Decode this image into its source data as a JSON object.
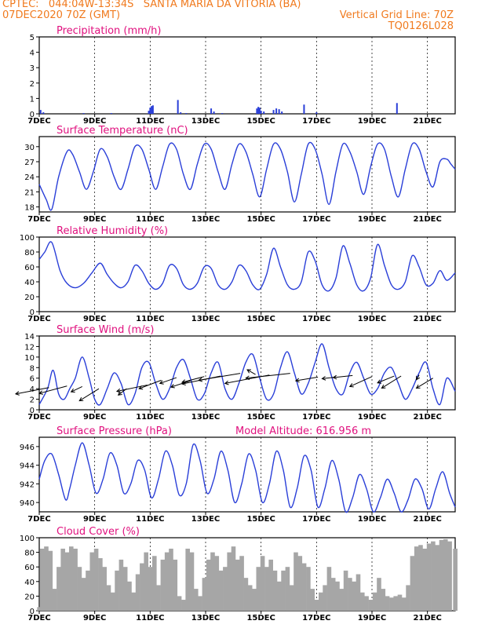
{
  "header": {
    "station": "CPTEC:   044:04W-13:34S   SANTA MARIA DA VITORIA (BA)",
    "date": "07DEC2020 70Z (GMT)",
    "grid_line": "Vertical Grid Line: 70Z",
    "code": "TQ0126L028"
  },
  "colors": {
    "series": "#2a3fd8",
    "cloud": "#a6a6a6",
    "title": "#e0107e",
    "header": "#f07a1e"
  },
  "chart_data": [
    {
      "id": "precip",
      "type": "bar",
      "title": "Precipitation (mm/h)",
      "ylim": [
        0,
        5
      ],
      "yticks": [
        0,
        1,
        2,
        3,
        4,
        5
      ],
      "xlim": [
        0,
        15
      ],
      "xticks": [
        0,
        2,
        4,
        6,
        8,
        10,
        12,
        14
      ],
      "xticklabels": [
        "7DEC",
        "9DEC",
        "11DEC",
        "13DEC",
        "15DEC",
        "17DEC",
        "19DEC",
        "21DEC"
      ],
      "x": [
        0.05,
        0.15,
        1.6,
        2.6,
        3.95,
        4.0,
        4.05,
        4.1,
        5.0,
        5.1,
        5.3,
        6.2,
        6.3,
        6.6,
        7.85,
        7.9,
        7.95,
        8.0,
        8.1,
        8.45,
        8.55,
        8.65,
        8.75,
        9.55,
        10.0,
        12.9
      ],
      "values": [
        0.25,
        0.1,
        0.05,
        0.05,
        0.2,
        0.4,
        0.5,
        0.55,
        0.9,
        0.1,
        0.05,
        0.35,
        0.15,
        0.05,
        0.35,
        0.45,
        0.4,
        0.2,
        0.15,
        0.25,
        0.35,
        0.3,
        0.15,
        0.6,
        0.1,
        0.7
      ]
    },
    {
      "id": "temp",
      "type": "line",
      "title": "Surface Temperature (nC)",
      "ylim": [
        17,
        32
      ],
      "yticks": [
        18,
        21,
        24,
        27,
        30
      ],
      "xlim": [
        0,
        15
      ],
      "xticks": [
        0,
        2,
        4,
        6,
        8,
        10,
        12,
        14
      ],
      "xticklabels": [
        "7DEC",
        "9DEC",
        "11DEC",
        "13DEC",
        "15DEC",
        "17DEC",
        "19DEC",
        "21DEC"
      ],
      "series": [
        {
          "x": [
            0,
            0.25,
            0.45,
            0.7,
            1.0,
            1.2,
            1.45,
            1.7,
            1.95,
            2.2,
            2.45,
            2.7,
            2.95,
            3.2,
            3.45,
            3.7,
            3.95,
            4.2,
            4.45,
            4.7,
            4.95,
            5.2,
            5.45,
            5.7,
            5.95,
            6.2,
            6.45,
            6.7,
            6.95,
            7.2,
            7.45,
            7.7,
            7.95,
            8.2,
            8.45,
            8.7,
            8.95,
            9.2,
            9.45,
            9.7,
            9.95,
            10.2,
            10.45,
            10.7,
            10.95,
            11.2,
            11.45,
            11.7,
            11.95,
            12.2,
            12.45,
            12.7,
            12.95,
            13.2,
            13.45,
            13.7,
            13.95,
            14.2,
            14.45,
            14.7,
            14.85,
            15.0
          ],
          "values": [
            22.5,
            19.5,
            17.5,
            24,
            29,
            28.5,
            25,
            21.5,
            25,
            29.5,
            28,
            24,
            21.5,
            25.5,
            30,
            29.5,
            25.5,
            21.5,
            26,
            30.5,
            29.5,
            24.5,
            21.5,
            26.5,
            30.5,
            29.5,
            25,
            21.5,
            26.5,
            30.5,
            29,
            24.5,
            20,
            25.5,
            30.5,
            29.5,
            25,
            19,
            24.5,
            30.5,
            29.5,
            24.5,
            18.5,
            25,
            30.5,
            29,
            25,
            20.5,
            26,
            30.5,
            29.5,
            24,
            20,
            25.5,
            30.5,
            29.5,
            25,
            22,
            27,
            27.5,
            26.5,
            25.5
          ]
        }
      ]
    },
    {
      "id": "rh",
      "type": "line",
      "title": "Relative Humidity (%)",
      "ylim": [
        0,
        100
      ],
      "yticks": [
        0,
        20,
        40,
        60,
        80,
        100
      ],
      "xlim": [
        0,
        15
      ],
      "xticks": [
        0,
        2,
        4,
        6,
        8,
        10,
        12,
        14
      ],
      "xticklabels": [
        "7DEC",
        "9DEC",
        "11DEC",
        "13DEC",
        "15DEC",
        "17DEC",
        "19DEC",
        "21DEC"
      ],
      "series": [
        {
          "x": [
            0,
            0.2,
            0.45,
            0.75,
            1.0,
            1.3,
            1.6,
            1.9,
            2.2,
            2.45,
            2.7,
            2.95,
            3.2,
            3.45,
            3.7,
            3.95,
            4.2,
            4.45,
            4.7,
            4.95,
            5.2,
            5.45,
            5.7,
            5.95,
            6.2,
            6.45,
            6.7,
            6.95,
            7.2,
            7.45,
            7.7,
            7.95,
            8.2,
            8.45,
            8.7,
            8.95,
            9.2,
            9.45,
            9.7,
            9.95,
            10.2,
            10.45,
            10.7,
            10.95,
            11.2,
            11.45,
            11.7,
            11.95,
            12.2,
            12.45,
            12.7,
            12.95,
            13.2,
            13.45,
            13.7,
            13.95,
            14.2,
            14.45,
            14.7,
            15.0
          ],
          "values": [
            70,
            80,
            93,
            55,
            38,
            32,
            38,
            52,
            65,
            50,
            38,
            32,
            40,
            62,
            55,
            38,
            30,
            38,
            62,
            58,
            36,
            30,
            38,
            60,
            58,
            36,
            30,
            40,
            62,
            55,
            36,
            30,
            50,
            85,
            60,
            36,
            30,
            40,
            80,
            68,
            36,
            28,
            45,
            88,
            65,
            36,
            28,
            45,
            90,
            62,
            36,
            30,
            40,
            75,
            60,
            36,
            38,
            55,
            42,
            52
          ]
        }
      ]
    },
    {
      "id": "wind",
      "type": "line",
      "title": "Surface Wind (m/s)",
      "ylim": [
        0,
        14
      ],
      "yticks": [
        0,
        2,
        4,
        6,
        8,
        10,
        12,
        14
      ],
      "xlim": [
        0,
        15
      ],
      "xticks": [
        0,
        2,
        4,
        6,
        8,
        10,
        12,
        14
      ],
      "xticklabels": [
        "7DEC",
        "9DEC",
        "11DEC",
        "13DEC",
        "15DEC",
        "17DEC",
        "19DEC",
        "21DEC"
      ],
      "series": [
        {
          "x": [
            0,
            0.3,
            0.5,
            0.7,
            0.9,
            1.1,
            1.3,
            1.55,
            1.8,
            2.0,
            2.2,
            2.45,
            2.7,
            2.95,
            3.2,
            3.45,
            3.7,
            3.95,
            4.2,
            4.45,
            4.7,
            4.95,
            5.2,
            5.45,
            5.7,
            5.95,
            6.2,
            6.45,
            6.7,
            6.95,
            7.2,
            7.45,
            7.7,
            7.95,
            8.2,
            8.45,
            8.7,
            8.95,
            9.2,
            9.45,
            9.7,
            9.95,
            10.2,
            10.45,
            10.7,
            10.95,
            11.2,
            11.45,
            11.7,
            11.95,
            12.2,
            12.45,
            12.7,
            12.95,
            13.2,
            13.45,
            13.7,
            13.95,
            14.2,
            14.45,
            14.7,
            15.0
          ],
          "values": [
            1,
            4,
            7.5,
            3,
            2,
            4,
            6,
            10,
            6,
            2,
            1,
            4,
            7,
            5,
            1,
            3,
            8,
            9,
            5,
            2,
            4,
            8,
            9.5,
            6,
            2,
            3,
            7,
            9,
            4,
            2,
            5,
            9,
            10.5,
            6,
            2,
            3,
            8,
            11,
            7,
            3,
            5,
            9,
            12.5,
            8,
            4,
            3,
            7,
            9,
            6,
            3,
            4,
            7,
            8,
            5,
            2,
            4,
            7,
            9,
            4,
            1,
            6,
            3.5
          ]
        }
      ],
      "vectors": [
        {
          "x": 0.35,
          "y": 4.2,
          "u": -1.2,
          "v": -1.2
        },
        {
          "x": 1.0,
          "y": 4.5,
          "u": -1.0,
          "v": -1.4
        },
        {
          "x": 1.55,
          "y": 4.4,
          "u": -0.4,
          "v": -1.0
        },
        {
          "x": 2.15,
          "y": 4.0,
          "u": -0.7,
          "v": -2.3
        },
        {
          "x": 3.15,
          "y": 4.0,
          "u": -0.3,
          "v": -1.2
        },
        {
          "x": 3.9,
          "y": 4.7,
          "u": -1.1,
          "v": -1.2
        },
        {
          "x": 4.4,
          "y": 5.6,
          "u": -0.8,
          "v": -1.6
        },
        {
          "x": 4.95,
          "y": 6.1,
          "u": -0.6,
          "v": -1.1
        },
        {
          "x": 5.45,
          "y": 5.5,
          "u": -0.7,
          "v": -1.2
        },
        {
          "x": 5.95,
          "y": 6.3,
          "u": -0.8,
          "v": -1.1
        },
        {
          "x": 6.55,
          "y": 6.4,
          "u": -1.4,
          "v": -1.5
        },
        {
          "x": 7.25,
          "y": 6.9,
          "u": -1.5,
          "v": -1.3
        },
        {
          "x": 7.8,
          "y": 6.7,
          "u": -0.3,
          "v": 0.9
        },
        {
          "x": 8.3,
          "y": 6.6,
          "u": -1.6,
          "v": -1.6
        },
        {
          "x": 9.05,
          "y": 6.9,
          "u": -1.6,
          "v": -0.9
        },
        {
          "x": 10.05,
          "y": 6.2,
          "u": -0.8,
          "v": -0.7
        },
        {
          "x": 10.7,
          "y": 6.2,
          "u": -0.5,
          "v": -0.3
        },
        {
          "x": 11.3,
          "y": 6.5,
          "u": -0.7,
          "v": -0.4
        },
        {
          "x": 12.0,
          "y": 6.3,
          "u": -0.8,
          "v": -1.9
        },
        {
          "x": 12.8,
          "y": 6.4,
          "u": -0.6,
          "v": -1.3
        },
        {
          "x": 13.05,
          "y": 6.4,
          "u": -0.7,
          "v": -2.3
        },
        {
          "x": 13.7,
          "y": 6.6,
          "u": -0.1,
          "v": -0.9
        },
        {
          "x": 14.2,
          "y": 6.0,
          "u": -0.6,
          "v": -1.9
        }
      ]
    },
    {
      "id": "pres",
      "type": "line",
      "title": "Surface Pressure (hPa)",
      "subtitle": "Model Altitude: 616.956 m",
      "ylim": [
        939,
        947
      ],
      "yticks": [
        940,
        942,
        944,
        946
      ],
      "xlim": [
        0,
        15
      ],
      "xticks": [
        0,
        2,
        4,
        6,
        8,
        10,
        12,
        14
      ],
      "xticklabels": [
        "7DEC",
        "9DEC",
        "11DEC",
        "13DEC",
        "15DEC",
        "17DEC",
        "19DEC",
        "21DEC"
      ],
      "series": [
        {
          "x": [
            0,
            0.2,
            0.45,
            0.7,
            0.95,
            1.1,
            1.3,
            1.55,
            1.8,
            2.05,
            2.3,
            2.55,
            2.8,
            3.05,
            3.3,
            3.55,
            3.8,
            4.05,
            4.3,
            4.55,
            4.8,
            5.05,
            5.3,
            5.55,
            5.8,
            6.05,
            6.3,
            6.55,
            6.8,
            7.05,
            7.3,
            7.55,
            7.8,
            8.05,
            8.3,
            8.55,
            8.8,
            9.05,
            9.3,
            9.55,
            9.8,
            10.05,
            10.3,
            10.55,
            10.8,
            11.05,
            11.3,
            11.55,
            11.8,
            12.05,
            12.3,
            12.55,
            12.8,
            13.05,
            13.3,
            13.55,
            13.8,
            14.05,
            14.3,
            14.55,
            14.8,
            15.0
          ],
          "values": [
            942.5,
            944.5,
            945.2,
            943,
            940.3,
            941.5,
            944,
            946.4,
            944,
            941,
            942.5,
            945.3,
            944,
            941,
            942,
            944.5,
            943.5,
            940.5,
            942.5,
            945.5,
            944,
            940.8,
            942,
            946.2,
            944.5,
            941,
            942.5,
            945.5,
            943.5,
            940,
            942,
            945.2,
            943.5,
            940,
            942,
            945.5,
            943.5,
            939.5,
            941.5,
            945,
            943.5,
            939.5,
            941.5,
            944.5,
            942.5,
            939,
            940.5,
            943,
            941.5,
            939,
            940.5,
            942.5,
            941,
            939,
            940.3,
            942.5,
            941.5,
            939.3,
            941.5,
            943.3,
            941,
            939.5
          ]
        }
      ]
    },
    {
      "id": "cloud",
      "type": "area",
      "title": "Cloud Cover (%)",
      "ylim": [
        0,
        100
      ],
      "yticks": [
        0,
        20,
        40,
        60,
        80,
        100
      ],
      "xlim": [
        0,
        15
      ],
      "xticks": [
        0,
        2,
        4,
        6,
        8,
        10,
        12,
        14
      ],
      "xticklabels": [
        "7DEC",
        "9DEC",
        "11DEC",
        "13DEC",
        "15DEC",
        "17DEC",
        "19DEC",
        "21DEC"
      ],
      "series": [
        {
          "x": [
            0,
            0.1,
            0.25,
            0.4,
            0.55,
            0.7,
            0.85,
            1.0,
            1.15,
            1.3,
            1.45,
            1.6,
            1.75,
            1.9,
            2.05,
            2.2,
            2.35,
            2.5,
            2.65,
            2.8,
            2.95,
            3.1,
            3.25,
            3.4,
            3.55,
            3.7,
            3.85,
            4.0,
            4.15,
            4.3,
            4.45,
            4.6,
            4.75,
            4.9,
            5.05,
            5.2,
            5.35,
            5.5,
            5.65,
            5.8,
            5.95,
            6.1,
            6.25,
            6.4,
            6.55,
            6.7,
            6.85,
            7.0,
            7.15,
            7.3,
            7.45,
            7.6,
            7.75,
            7.9,
            8.05,
            8.2,
            8.35,
            8.5,
            8.65,
            8.8,
            8.95,
            9.1,
            9.25,
            9.4,
            9.55,
            9.7,
            9.85,
            10.0,
            10.15,
            10.3,
            10.45,
            10.6,
            10.75,
            10.9,
            11.05,
            11.2,
            11.35,
            11.5,
            11.65,
            11.8,
            11.95,
            12.1,
            12.25,
            12.4,
            12.55,
            12.7,
            12.85,
            13.0,
            13.15,
            13.3,
            13.45,
            13.6,
            13.75,
            13.9,
            14.05,
            14.2,
            14.35,
            14.5,
            14.65,
            14.8,
            15.0
          ],
          "values": [
            5,
            85,
            88,
            82,
            30,
            60,
            85,
            80,
            88,
            85,
            60,
            45,
            55,
            80,
            85,
            72,
            60,
            35,
            25,
            55,
            70,
            60,
            40,
            25,
            50,
            65,
            80,
            60,
            75,
            35,
            70,
            80,
            85,
            70,
            20,
            15,
            85,
            80,
            30,
            20,
            45,
            70,
            80,
            75,
            55,
            60,
            80,
            88,
            70,
            75,
            45,
            35,
            30,
            60,
            75,
            60,
            70,
            55,
            40,
            55,
            60,
            35,
            80,
            75,
            65,
            60,
            30,
            15,
            25,
            35,
            60,
            45,
            40,
            30,
            55,
            45,
            40,
            50,
            25,
            20,
            15,
            25,
            45,
            30,
            20,
            18,
            20,
            22,
            18,
            35,
            75,
            88,
            90,
            85,
            92,
            95,
            90,
            97,
            98,
            95,
            85
          ]
        }
      ]
    }
  ]
}
